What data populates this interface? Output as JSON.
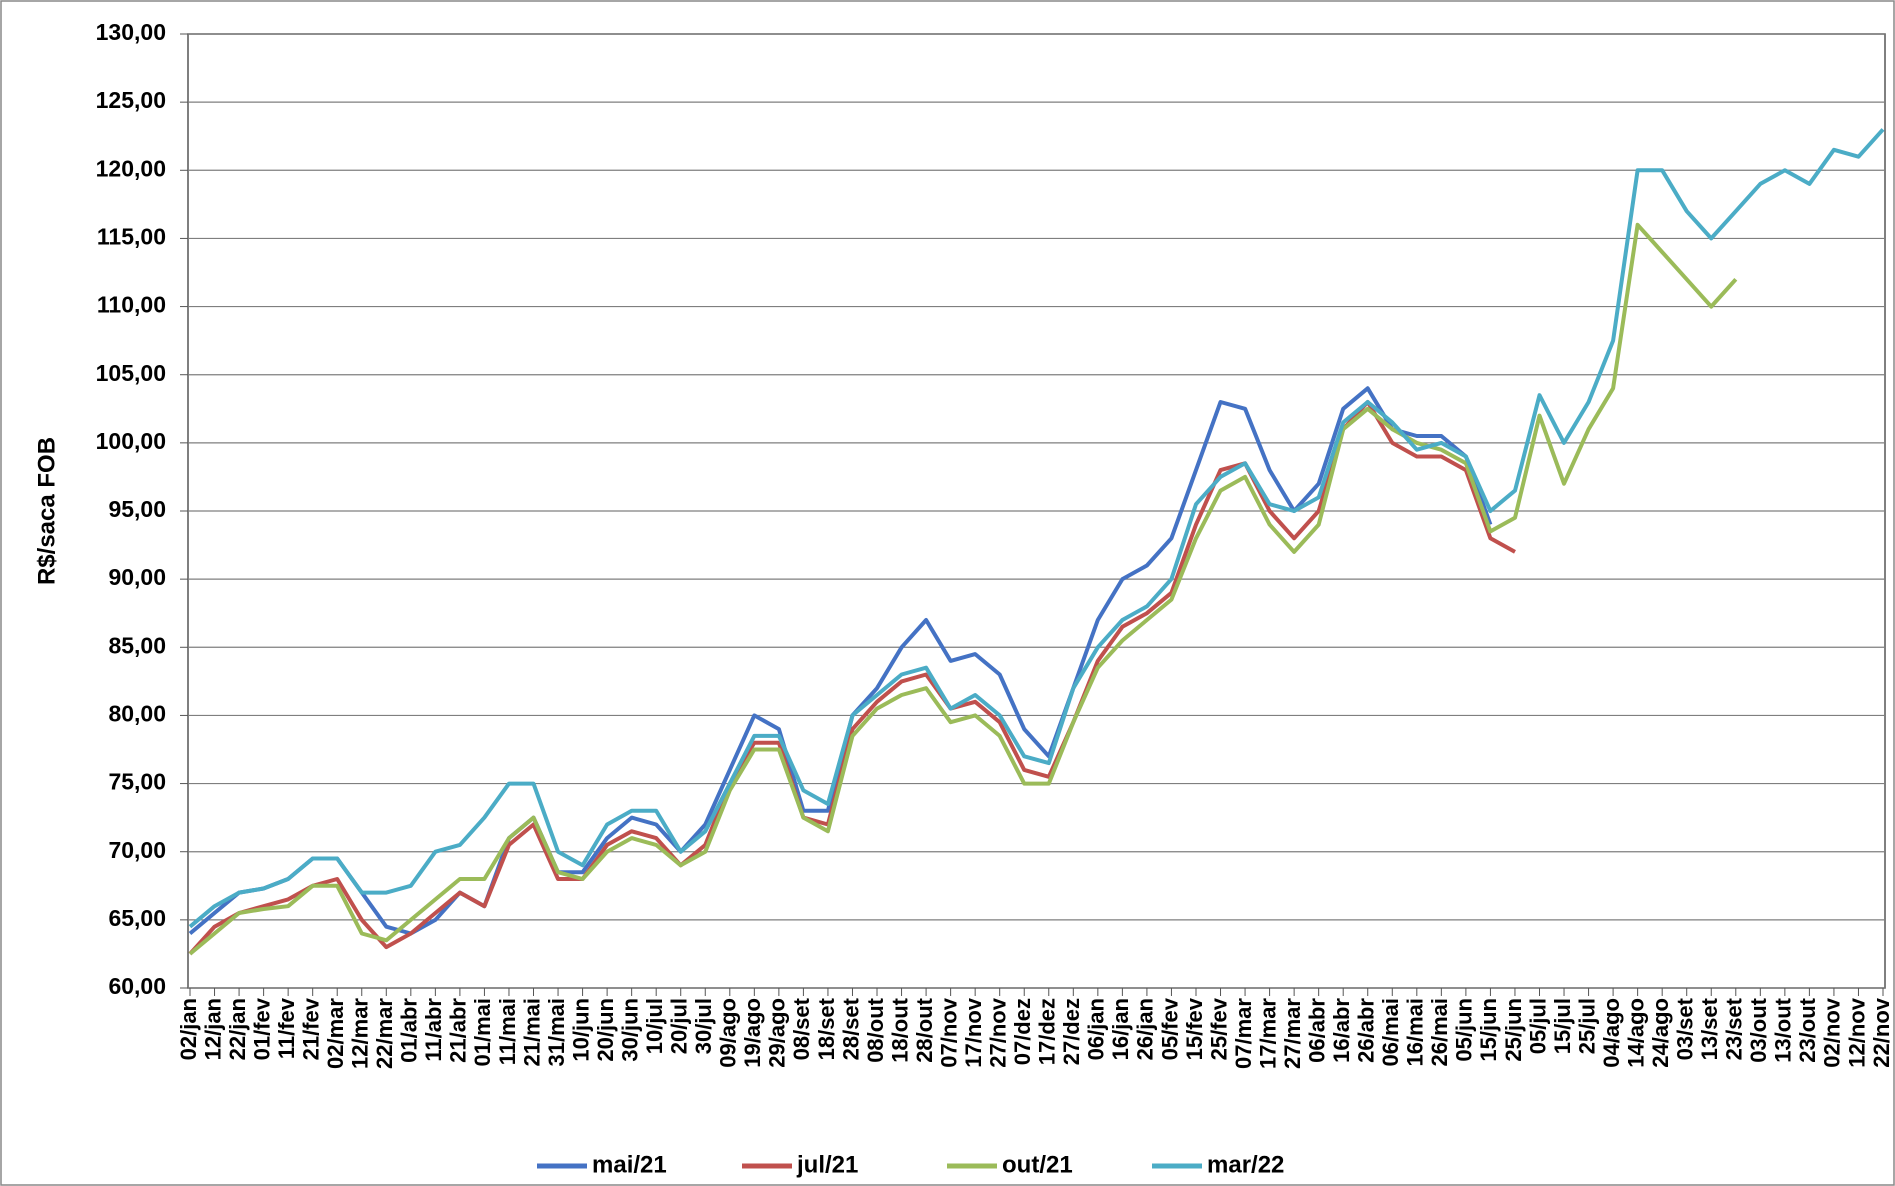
{
  "chart_data": {
    "type": "line",
    "y_label": "R$/saca FOB",
    "categories": [
      "02/jan",
      "12/jan",
      "22/jan",
      "01/fev",
      "11/fev",
      "21/fev",
      "02/mar",
      "12/mar",
      "22/mar",
      "01/abr",
      "11/abr",
      "21/abr",
      "01/mai",
      "11/mai",
      "21/mai",
      "31/mai",
      "10/jun",
      "20/jun",
      "30/jun",
      "10/jul",
      "20/jul",
      "30/jul",
      "09/ago",
      "19/ago",
      "29/ago",
      "08/set",
      "18/set",
      "28/set",
      "08/out",
      "18/out",
      "28/out",
      "07/nov",
      "17/nov",
      "27/nov",
      "07/dez",
      "17/dez",
      "27/dez",
      "06/jan",
      "16/jan",
      "26/jan",
      "05/fev",
      "15/fev",
      "25/fev",
      "07/mar",
      "17/mar",
      "27/mar",
      "06/abr",
      "16/abr",
      "26/abr",
      "06/mai",
      "16/mai",
      "26/mai",
      "05/jun",
      "15/jun",
      "25/jun",
      "05/jul",
      "15/jul",
      "25/jul",
      "04/ago",
      "14/ago",
      "24/ago",
      "03/set",
      "13/set",
      "23/set",
      "03/out",
      "13/out",
      "23/out",
      "02/nov",
      "12/nov",
      "22/nov"
    ],
    "series": [
      {
        "name": "mai/21",
        "color": "#4472c4",
        "values": [
          64,
          65.5,
          67,
          67.3,
          68,
          69.5,
          69.5,
          67,
          64.5,
          64,
          65,
          67,
          66,
          71,
          72.5,
          68.5,
          68.5,
          71,
          72.5,
          72,
          70,
          72,
          76,
          80,
          79,
          73,
          73,
          80,
          82,
          85,
          87,
          84,
          84.5,
          83,
          79,
          77,
          82,
          87,
          90,
          91,
          93,
          98,
          103,
          102.5,
          98,
          95,
          97,
          102.5,
          104,
          101,
          100.5,
          100.5,
          99,
          94,
          null,
          null,
          null,
          null,
          null,
          null,
          null,
          null,
          null,
          null,
          null,
          null,
          null,
          null,
          null,
          null
        ]
      },
      {
        "name": "jul/21",
        "color": "#c0504d",
        "values": [
          62.5,
          64.5,
          65.5,
          66,
          66.5,
          67.5,
          68,
          65,
          63,
          64,
          65.5,
          67,
          66,
          70.5,
          72,
          68,
          68,
          70.5,
          71.5,
          71,
          69,
          70.5,
          75,
          78,
          78,
          72.5,
          72,
          79,
          81,
          82.5,
          83,
          80.5,
          81,
          79.5,
          76,
          75.5,
          79.5,
          84,
          86.5,
          87.5,
          89,
          94,
          98,
          98.5,
          95,
          93,
          95,
          101,
          103,
          100,
          99,
          99,
          98,
          93,
          92,
          null,
          null,
          null,
          null,
          null,
          null,
          null,
          null,
          null,
          null,
          null,
          null,
          null,
          null,
          null
        ]
      },
      {
        "name": "out/21",
        "color": "#9bbb59",
        "values": [
          62.5,
          64,
          65.5,
          65.8,
          66,
          67.5,
          67.5,
          64,
          63.5,
          65,
          66.5,
          68,
          68,
          71,
          72.5,
          68.5,
          68,
          70,
          71,
          70.5,
          69,
          70,
          74.5,
          77.5,
          77.5,
          72.5,
          71.5,
          78.5,
          80.5,
          81.5,
          82,
          79.5,
          80,
          78.5,
          75,
          75,
          79.5,
          83.5,
          85.5,
          87,
          88.5,
          93,
          96.5,
          97.5,
          94,
          92,
          94,
          101,
          102.5,
          101,
          100,
          99.5,
          98.5,
          93.5,
          94.5,
          102,
          97,
          101,
          104,
          116,
          114,
          112,
          110,
          112,
          null,
          null,
          null,
          null,
          null,
          null
        ]
      },
      {
        "name": "mar/22",
        "color": "#4bacc6",
        "values": [
          64.5,
          66,
          67,
          67.3,
          68,
          69.5,
          69.5,
          67,
          67,
          67.5,
          70,
          70.5,
          72.5,
          75,
          75,
          70,
          69,
          72,
          73,
          73,
          70,
          71.5,
          75,
          78.5,
          78.5,
          74.5,
          73.5,
          80,
          81.5,
          83,
          83.5,
          80.5,
          81.5,
          80,
          77,
          76.5,
          82,
          85,
          87,
          88,
          90,
          95.5,
          97.5,
          98.5,
          95.5,
          95,
          96,
          101.5,
          103,
          101.5,
          99.5,
          100,
          99,
          95,
          96.5,
          103.5,
          100,
          103,
          107.5,
          120,
          120,
          117,
          115,
          117,
          119,
          120,
          119,
          121.5,
          121,
          123
        ]
      }
    ],
    "ylim": [
      60,
      130
    ],
    "yticks": [
      {
        "value": 60,
        "label": "60,00"
      },
      {
        "value": 65,
        "label": "65,00"
      },
      {
        "value": 70,
        "label": "70,00"
      },
      {
        "value": 75,
        "label": "75,00"
      },
      {
        "value": 80,
        "label": "80,00"
      },
      {
        "value": 85,
        "label": "85,00"
      },
      {
        "value": 90,
        "label": "90,00"
      },
      {
        "value": 95,
        "label": "95,00"
      },
      {
        "value": 100,
        "label": "100,00"
      },
      {
        "value": 105,
        "label": "105,00"
      },
      {
        "value": 110,
        "label": "110,00"
      },
      {
        "value": 115,
        "label": "115,00"
      },
      {
        "value": 120,
        "label": "120,00"
      },
      {
        "value": 125,
        "label": "125,00"
      },
      {
        "value": 130,
        "label": "130,00"
      }
    ],
    "grid": true,
    "legend": "bottom"
  }
}
